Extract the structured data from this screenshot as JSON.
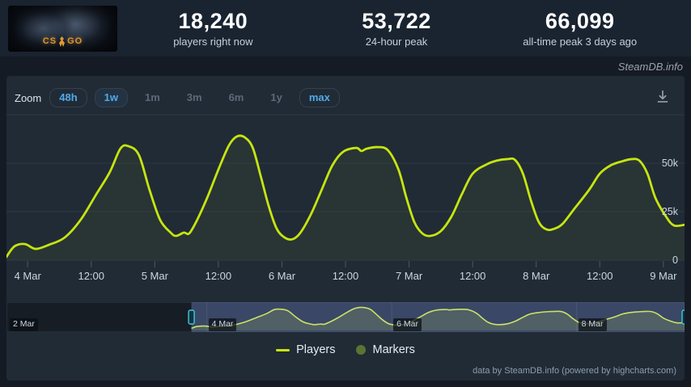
{
  "app": {
    "watermark": "SteamDB.info",
    "credits": "data by SteamDB.info (powered by highcharts.com)"
  },
  "header": {
    "banner": {
      "game": "CS:GO",
      "wordmark_left": "CS",
      "wordmark_right": "GO"
    },
    "stats": [
      {
        "value": "18,240",
        "label": "players right now"
      },
      {
        "value": "53,722",
        "label": "24-hour peak"
      },
      {
        "value": "66,099",
        "label": "all-time peak 3 days ago"
      }
    ]
  },
  "toolbar": {
    "zoom_label": "Zoom",
    "buttons": [
      {
        "label": "48h",
        "state": "enabled",
        "selected": false
      },
      {
        "label": "1w",
        "state": "enabled",
        "selected": true
      },
      {
        "label": "1m",
        "state": "disabled",
        "selected": false
      },
      {
        "label": "3m",
        "state": "disabled",
        "selected": false
      },
      {
        "label": "6m",
        "state": "disabled",
        "selected": false
      },
      {
        "label": "1y",
        "state": "disabled",
        "selected": false
      },
      {
        "label": "max",
        "state": "enabled",
        "selected": false
      }
    ]
  },
  "chart_data": {
    "type": "line",
    "title": "",
    "x_range_hours": [
      0,
      128
    ],
    "x_start": "3 Mar 20:00",
    "x_end": "9 Mar 04:00",
    "y_axis": {
      "min": 0,
      "max": 75000,
      "gridlines_v": [
        75000,
        50000,
        25000,
        0
      ],
      "ticks": [
        {
          "v": 50000,
          "label": "50k"
        },
        {
          "v": 25000,
          "label": "25k"
        },
        {
          "v": 0,
          "label": "0"
        }
      ]
    },
    "x_ticks": [
      {
        "t": 4,
        "label": "4 Mar"
      },
      {
        "t": 16,
        "label": "12:00"
      },
      {
        "t": 28,
        "label": "5 Mar"
      },
      {
        "t": 40,
        "label": "12:00"
      },
      {
        "t": 52,
        "label": "6 Mar"
      },
      {
        "t": 64,
        "label": "12:00"
      },
      {
        "t": 76,
        "label": "7 Mar"
      },
      {
        "t": 88,
        "label": "12:00"
      },
      {
        "t": 100,
        "label": "8 Mar"
      },
      {
        "t": 112,
        "label": "12:00"
      },
      {
        "t": 124,
        "label": "9 Mar"
      }
    ],
    "series": [
      {
        "name": "Players",
        "color": "#c6e510",
        "points": [
          [
            0,
            1700
          ],
          [
            1.5,
            7100
          ],
          [
            3.5,
            8300
          ],
          [
            5.5,
            5800
          ],
          [
            8,
            7900
          ],
          [
            11,
            11700
          ],
          [
            14,
            20800
          ],
          [
            17,
            34200
          ],
          [
            19.5,
            45400
          ],
          [
            21.5,
            57500
          ],
          [
            23,
            58800
          ],
          [
            25,
            54200
          ],
          [
            27,
            36300
          ],
          [
            29,
            20800
          ],
          [
            31,
            14200
          ],
          [
            32,
            12500
          ],
          [
            33.5,
            14200
          ],
          [
            34.5,
            13800
          ],
          [
            36,
            20800
          ],
          [
            38,
            32900
          ],
          [
            40,
            46700
          ],
          [
            42,
            59200
          ],
          [
            43.5,
            63800
          ],
          [
            45,
            63300
          ],
          [
            46.5,
            57900
          ],
          [
            48,
            43300
          ],
          [
            49.5,
            27900
          ],
          [
            51,
            16300
          ],
          [
            52.5,
            11700
          ],
          [
            54,
            10800
          ],
          [
            55.5,
            14200
          ],
          [
            57.5,
            23800
          ],
          [
            59.5,
            36300
          ],
          [
            61.5,
            48800
          ],
          [
            63.5,
            55800
          ],
          [
            66,
            57900
          ],
          [
            67,
            56300
          ],
          [
            68,
            57500
          ],
          [
            70,
            58300
          ],
          [
            72,
            56700
          ],
          [
            74,
            46700
          ],
          [
            75.5,
            32100
          ],
          [
            77,
            19600
          ],
          [
            78.5,
            13800
          ],
          [
            80,
            12500
          ],
          [
            82,
            15000
          ],
          [
            84,
            22500
          ],
          [
            86,
            34200
          ],
          [
            88,
            44600
          ],
          [
            90.5,
            49200
          ],
          [
            92.5,
            51300
          ],
          [
            94.5,
            52100
          ],
          [
            96,
            51700
          ],
          [
            97.5,
            44600
          ],
          [
            99,
            30800
          ],
          [
            100.5,
            19600
          ],
          [
            102,
            15800
          ],
          [
            103.5,
            16300
          ],
          [
            105,
            18800
          ],
          [
            107,
            25800
          ],
          [
            110,
            36300
          ],
          [
            112,
            44600
          ],
          [
            114,
            48800
          ],
          [
            116,
            50800
          ],
          [
            118,
            52100
          ],
          [
            119.5,
            51300
          ],
          [
            121,
            44600
          ],
          [
            122.5,
            32100
          ],
          [
            124.5,
            22500
          ],
          [
            126,
            17900
          ],
          [
            128,
            18240
          ]
        ]
      }
    ],
    "legend": [
      {
        "label": "Players",
        "marker": "line",
        "color": "#c6e510"
      },
      {
        "label": "Markers",
        "marker": "circle",
        "color": "#5a7432"
      }
    ]
  },
  "navigator": {
    "t_range": [
      -48,
      128
    ],
    "selection_t": [
      0,
      128
    ],
    "ticks": [
      {
        "t": -44,
        "label": "2 Mar",
        "edge": true
      },
      {
        "t": 4,
        "label": "4 Mar"
      },
      {
        "t": 52,
        "label": "6 Mar"
      },
      {
        "t": 100,
        "label": "8 Mar"
      }
    ]
  },
  "colors": {
    "page_bg": "#151b24",
    "header_bg": "#1a2330",
    "panel_bg": "#212b36",
    "accent_blue": "#4fabec",
    "line": "#c6e510",
    "nav_line": "#cbe266",
    "selection": "rgba(110,130,200,0.33)",
    "handle_stroke": "#3fc8e0",
    "handle_fill": "#12333f",
    "grid": "#2d3844",
    "axis_label": "#cdd6df"
  }
}
